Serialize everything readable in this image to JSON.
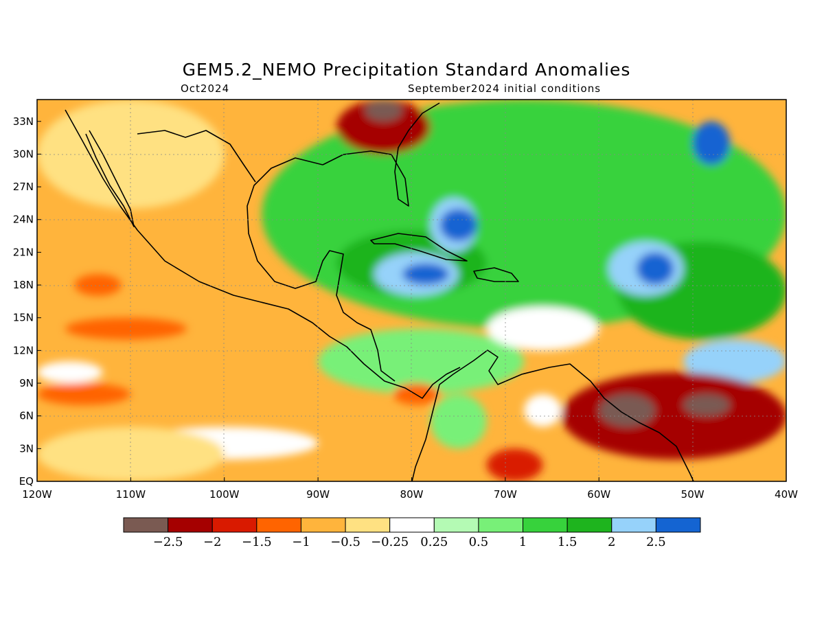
{
  "title": "GEM5.2_NEMO Precipitation Standard Anomalies",
  "valid_month": "Oct2024",
  "initial_conditions": "September2024 initial conditions",
  "y_axis_ticks": [
    "EQ",
    "3N",
    "6N",
    "9N",
    "12N",
    "15N",
    "18N",
    "21N",
    "24N",
    "27N",
    "30N",
    "33N"
  ],
  "x_axis_ticks": [
    "120W",
    "110W",
    "100W",
    "90W",
    "80W",
    "70W",
    "60W",
    "50W",
    "40W"
  ],
  "colorbar": {
    "colors": [
      "#7a5a52",
      "#a50000",
      "#d91a00",
      "#ff6400",
      "#ffb43c",
      "#ffe182",
      "#ffffff",
      "#b4fab4",
      "#78f078",
      "#37d23c",
      "#1eb41e",
      "#96d2fa",
      "#1464d2"
    ],
    "labels": [
      "-2.5",
      "-2",
      "-1.5",
      "-1",
      "-0.5",
      "-0.25",
      "0.25",
      "0.5",
      "1",
      "1.5",
      "2",
      "2.5"
    ]
  },
  "map": {
    "extent": {
      "lon": [
        -120,
        -40
      ],
      "lat": [
        0,
        35
      ]
    },
    "background_category": "orange-light",
    "anomaly_regions": [
      {
        "category": "green-mid",
        "lon": [
          -96,
          -40
        ],
        "lat": [
          14,
          35
        ]
      },
      {
        "category": "green-light",
        "lon": [
          -90,
          -68
        ],
        "lat": [
          8,
          14
        ]
      },
      {
        "category": "white",
        "lon": [
          -72,
          -60
        ],
        "lat": [
          12,
          16
        ]
      },
      {
        "category": "green-dark",
        "lon": [
          -88,
          -72
        ],
        "lat": [
          17,
          23
        ]
      },
      {
        "category": "green-dark",
        "lon": [
          -58,
          -40
        ],
        "lat": [
          13,
          22
        ]
      },
      {
        "category": "blue-light",
        "lon": [
          -84,
          -75
        ],
        "lat": [
          17,
          21
        ]
      },
      {
        "category": "blue-light",
        "lon": [
          -78,
          -73
        ],
        "lat": [
          21,
          26
        ]
      },
      {
        "category": "blue-light",
        "lon": [
          -59,
          -51
        ],
        "lat": [
          17,
          22
        ]
      },
      {
        "category": "blue-light",
        "lon": [
          -51,
          -40
        ],
        "lat": [
          9,
          13
        ]
      },
      {
        "category": "blue-dark",
        "lon": [
          -81,
          -76
        ],
        "lat": [
          18,
          20
        ]
      },
      {
        "category": "blue-dark",
        "lon": [
          -77,
          -73
        ],
        "lat": [
          22,
          25
        ]
      },
      {
        "category": "blue-dark",
        "lon": [
          -56,
          -52
        ],
        "lat": [
          18,
          21
        ]
      },
      {
        "category": "blue-dark",
        "lon": [
          -50,
          -46
        ],
        "lat": [
          29,
          33
        ]
      },
      {
        "category": "red-dark",
        "lon": [
          -88,
          -78
        ],
        "lat": [
          30,
          35
        ]
      },
      {
        "category": "brown",
        "lon": [
          -85,
          -81
        ],
        "lat": [
          33,
          35
        ]
      },
      {
        "category": "red-dark",
        "lon": [
          -64,
          -40
        ],
        "lat": [
          2,
          10
        ]
      },
      {
        "category": "brown",
        "lon": [
          -60,
          -54
        ],
        "lat": [
          5,
          8
        ]
      },
      {
        "category": "brown",
        "lon": [
          -51,
          -46
        ],
        "lat": [
          6,
          8
        ]
      },
      {
        "category": "red",
        "lon": [
          -72,
          -66
        ],
        "lat": [
          0,
          3
        ]
      },
      {
        "category": "orange",
        "lon": [
          -117,
          -104
        ],
        "lat": [
          13,
          15
        ]
      },
      {
        "category": "orange",
        "lon": [
          -120,
          -110
        ],
        "lat": [
          7,
          9
        ]
      },
      {
        "category": "orange",
        "lon": [
          -116,
          -111
        ],
        "lat": [
          17,
          19
        ]
      },
      {
        "category": "orange",
        "lon": [
          -82,
          -77
        ],
        "lat": [
          7,
          9
        ]
      },
      {
        "category": "white",
        "lon": [
          -110,
          -90
        ],
        "lat": [
          2,
          5
        ]
      },
      {
        "category": "white",
        "lon": [
          -120,
          -113
        ],
        "lat": [
          9,
          11
        ]
      },
      {
        "category": "yellow",
        "lon": [
          -120,
          -100
        ],
        "lat": [
          0,
          5
        ]
      },
      {
        "category": "yellow",
        "lon": [
          -120,
          -100
        ],
        "lat": [
          25,
          35
        ]
      },
      {
        "category": "white",
        "lon": [
          -68,
          -64
        ],
        "lat": [
          5,
          8
        ]
      },
      {
        "category": "green-light",
        "lon": [
          -78,
          -72
        ],
        "lat": [
          3,
          8
        ]
      }
    ]
  }
}
